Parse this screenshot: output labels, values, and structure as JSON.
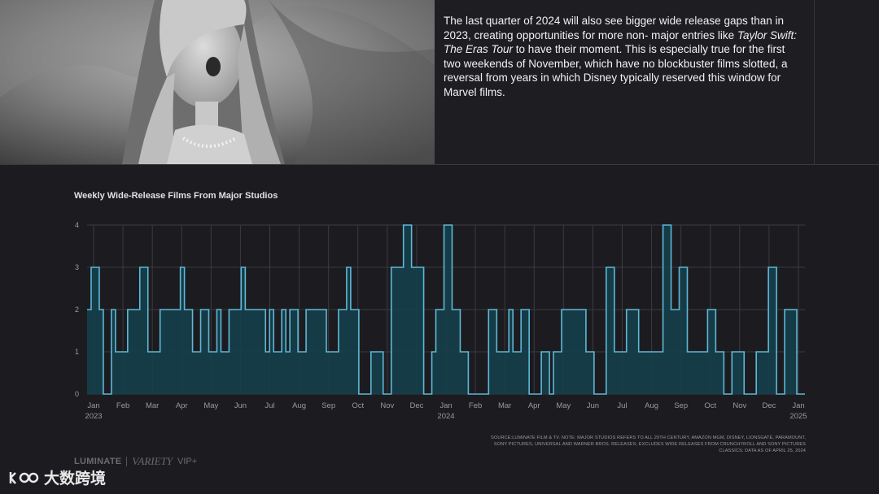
{
  "body_text": {
    "part1": "The last quarter of 2024 will also see bigger wide release gaps than in 2023, creating opportunities for more non- major entries like ",
    "italic": "Taylor Swift: The Eras Tour",
    "part2": " to have their moment. This is especially true for the first two weekends of November, which have no blockbuster films slotted, a reversal from years in which Disney typically reserved this window for Marvel films."
  },
  "source_note": "SOURCE:LUMINATE FILM & TV. NOTE: MAJOR STUDIOS REFERS TO ALL 20TH CENTURY, AMAZON MGM, DISNEY, LIONSGATE, PARAMOUNT, SONY PICTURES, UNIVERSAL AND WARNER BROS. RELEASES; EXCLUDES WIDE RELEASES FROM CRUNCHYROLL AND SONY PICTURES CLASSICS; DATA AS OF APRIL 25, 2024",
  "brand": {
    "luminate": "LUMINATE",
    "variety": "VARIETY",
    "vip": "VIP+"
  },
  "watermark": "大数跨境",
  "colors": {
    "line": "#5fb8d6",
    "fill": "#14414e",
    "grid": "#3a3a40",
    "background": "#1c1c20"
  },
  "chart_data": {
    "type": "area",
    "step": true,
    "title": "Weekly Wide-Release Films From Major Studios",
    "xlabel": "",
    "ylabel": "",
    "ylim": [
      0,
      4
    ],
    "yticks": [
      0,
      1,
      2,
      3,
      4
    ],
    "grid": true,
    "month_labels": [
      "Jan",
      "Feb",
      "Mar",
      "Apr",
      "May",
      "Jun",
      "Jul",
      "Aug",
      "Sep",
      "Oct",
      "Nov",
      "Dec",
      "Jan",
      "Feb",
      "Mar",
      "Apr",
      "May",
      "Jun",
      "Jul",
      "Aug",
      "Sep",
      "Oct",
      "Nov",
      "Dec",
      "Jan"
    ],
    "year_labels": [
      {
        "month_index": 0,
        "label": "2023"
      },
      {
        "month_index": 12,
        "label": "2024"
      },
      {
        "month_index": 24,
        "label": "2025"
      }
    ],
    "x_start": "2023-01",
    "x_end": "2025-01",
    "values": [
      2,
      3,
      3,
      2,
      0,
      0,
      2,
      1,
      1,
      1,
      2,
      2,
      2,
      3,
      3,
      1,
      1,
      1,
      2,
      2,
      2,
      2,
      2,
      3,
      2,
      2,
      1,
      1,
      2,
      2,
      1,
      1,
      2,
      1,
      1,
      2,
      2,
      2,
      3,
      2,
      2,
      2,
      2,
      2,
      1,
      2,
      1,
      1,
      2,
      1,
      2,
      2,
      1,
      1,
      2,
      2,
      2,
      2,
      2,
      1,
      1,
      1,
      2,
      2,
      3,
      2,
      2,
      0,
      0,
      0,
      1,
      1,
      1,
      0,
      0,
      3,
      3,
      3,
      4,
      4,
      3,
      3,
      3,
      0,
      0,
      1,
      2,
      2,
      4,
      4,
      2,
      2,
      1,
      1,
      0,
      0,
      0,
      0,
      0,
      2,
      2,
      1,
      1,
      1,
      2,
      1,
      1,
      2,
      2,
      0,
      0,
      0,
      1,
      1,
      0,
      1,
      1,
      2,
      2,
      2,
      2,
      2,
      2,
      1,
      1,
      0,
      0,
      0,
      3,
      3,
      1,
      1,
      1,
      2,
      2,
      2,
      1,
      1,
      1,
      1,
      1,
      1,
      4,
      4,
      2,
      2,
      3,
      3,
      1,
      1,
      1,
      1,
      1,
      2,
      2,
      1,
      1,
      0,
      0,
      1,
      1,
      1,
      0,
      0,
      0,
      1,
      1,
      1,
      3,
      3,
      0,
      0,
      2,
      2,
      2,
      0,
      0
    ]
  }
}
